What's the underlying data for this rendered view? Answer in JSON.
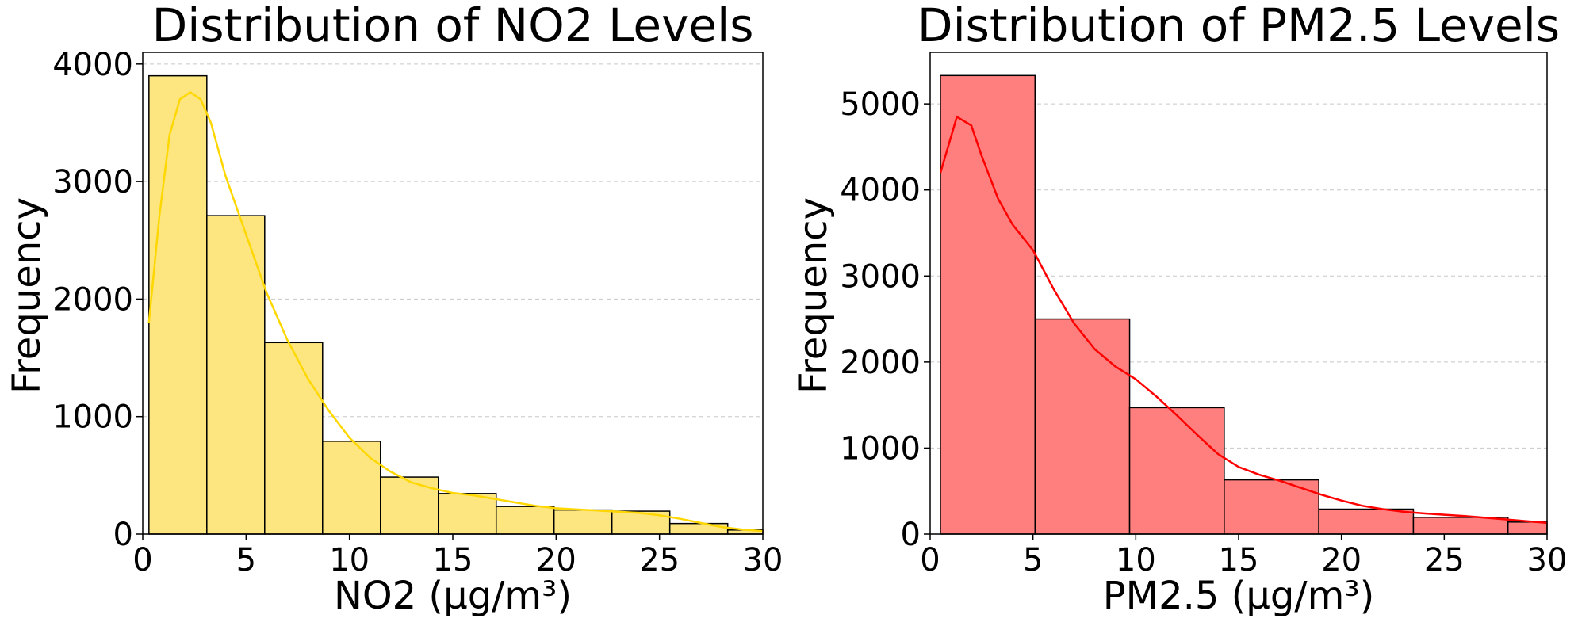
{
  "chart_data": [
    {
      "type": "bar",
      "title": "Distribution of NO2 Levels",
      "xlabel": "NO2 (μg/m³)",
      "ylabel": "Frequency",
      "xlim": [
        0,
        30
      ],
      "ylim": [
        0,
        4100
      ],
      "xticks": [
        0,
        5,
        10,
        15,
        20,
        25,
        30
      ],
      "yticks": [
        0,
        1000,
        2000,
        3000,
        4000
      ],
      "grid": "y",
      "bar_color": "#fde680",
      "edge_color": "#000000",
      "kde_color": "#ffd700",
      "bins": [
        {
          "x0": 0.3,
          "x1": 3.1,
          "value": 3900
        },
        {
          "x0": 3.1,
          "x1": 5.9,
          "value": 2710
        },
        {
          "x0": 5.9,
          "x1": 8.7,
          "value": 1630
        },
        {
          "x0": 8.7,
          "x1": 11.5,
          "value": 790
        },
        {
          "x0": 11.5,
          "x1": 14.3,
          "value": 485
        },
        {
          "x0": 14.3,
          "x1": 17.1,
          "value": 345
        },
        {
          "x0": 17.1,
          "x1": 19.9,
          "value": 235
        },
        {
          "x0": 19.9,
          "x1": 22.7,
          "value": 205
        },
        {
          "x0": 22.7,
          "x1": 25.5,
          "value": 195
        },
        {
          "x0": 25.5,
          "x1": 28.3,
          "value": 90
        },
        {
          "x0": 28.3,
          "x1": 30.0,
          "value": 35
        }
      ],
      "kde": {
        "x": [
          0.3,
          0.8,
          1.3,
          1.8,
          2.3,
          2.8,
          3.3,
          4.0,
          5.0,
          6.0,
          7.0,
          8.0,
          9.0,
          10.0,
          11.0,
          12.0,
          13.0,
          14.0,
          15.0,
          16.0,
          17.0,
          18.0,
          19.0,
          20.0,
          21.0,
          22.0,
          23.0,
          24.0,
          25.0,
          26.0,
          27.0,
          28.0,
          29.0,
          30.0
        ],
        "y": [
          1800,
          2700,
          3400,
          3700,
          3760,
          3700,
          3500,
          3050,
          2550,
          2050,
          1650,
          1320,
          1050,
          820,
          650,
          530,
          440,
          390,
          350,
          330,
          300,
          270,
          240,
          220,
          210,
          200,
          190,
          180,
          160,
          130,
          95,
          60,
          40,
          25
        ]
      }
    },
    {
      "type": "bar",
      "title": "Distribution of PM2.5 Levels",
      "xlabel": "PM2.5 (μg/m³)",
      "ylabel": "Frequency",
      "xlim": [
        0,
        30
      ],
      "ylim": [
        0,
        5600
      ],
      "xticks": [
        0,
        5,
        10,
        15,
        20,
        25,
        30
      ],
      "yticks": [
        0,
        1000,
        2000,
        3000,
        4000,
        5000
      ],
      "grid": "y",
      "bar_color": "#ff7f7f",
      "edge_color": "#000000",
      "kde_color": "#ff0000",
      "bins": [
        {
          "x0": 0.5,
          "x1": 5.1,
          "value": 5330
        },
        {
          "x0": 5.1,
          "x1": 9.7,
          "value": 2500
        },
        {
          "x0": 9.7,
          "x1": 14.3,
          "value": 1470
        },
        {
          "x0": 14.3,
          "x1": 18.9,
          "value": 630
        },
        {
          "x0": 18.9,
          "x1": 23.5,
          "value": 290
        },
        {
          "x0": 23.5,
          "x1": 28.1,
          "value": 195
        },
        {
          "x0": 28.1,
          "x1": 30.0,
          "value": 140
        }
      ],
      "kde": {
        "x": [
          0.5,
          1.3,
          2.0,
          2.5,
          3.3,
          4.0,
          5.0,
          6.0,
          7.0,
          8.0,
          9.0,
          10.0,
          11.0,
          12.0,
          13.0,
          14.0,
          15.0,
          16.0,
          17.0,
          18.0,
          19.0,
          20.0,
          21.0,
          22.0,
          23.0,
          24.0,
          25.0,
          26.0,
          27.0,
          28.0,
          29.0,
          30.0
        ],
        "y": [
          4200,
          4850,
          4750,
          4400,
          3900,
          3600,
          3300,
          2850,
          2450,
          2150,
          1950,
          1800,
          1600,
          1380,
          1150,
          930,
          780,
          690,
          620,
          540,
          460,
          390,
          330,
          290,
          260,
          240,
          225,
          210,
          190,
          170,
          150,
          130
        ]
      }
    }
  ]
}
